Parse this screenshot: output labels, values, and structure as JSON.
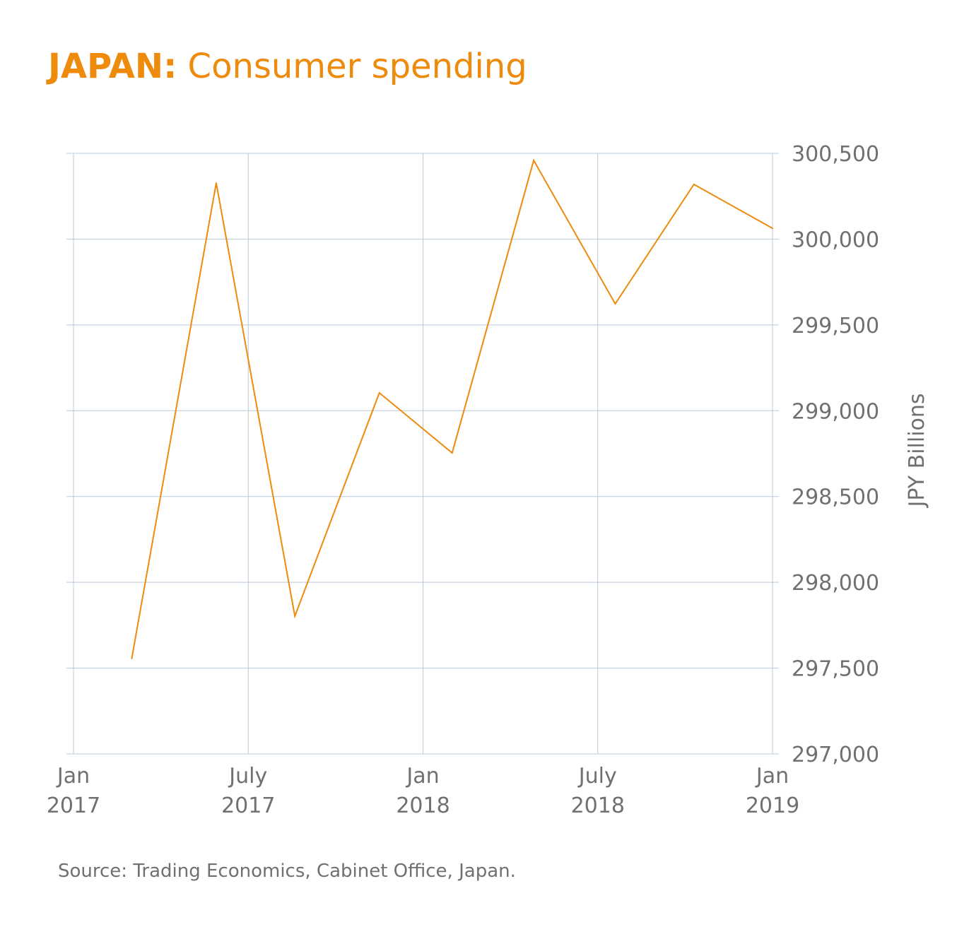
{
  "title": {
    "bold": "JAPAN:",
    "rest": " Consumer spending"
  },
  "source": "Source: Trading Economics, Cabinet Office, Japan.",
  "colors": {
    "line": "#ee8a0c",
    "grid": "#b9c9d9",
    "text": "#707070"
  },
  "chart_data": {
    "type": "line",
    "title": "JAPAN: Consumer spending",
    "xlabel": "",
    "ylabel": "JPY Billions",
    "x_unit": "months since Jan 2017",
    "xlim": [
      0,
      24
    ],
    "ylim": [
      297000,
      300500
    ],
    "yticks": [
      297000,
      297500,
      298000,
      298500,
      299000,
      299500,
      300000,
      300500
    ],
    "ytick_labels": [
      "297,000",
      "297,500",
      "298,000",
      "298,500",
      "299,000",
      "299,500",
      "300,000",
      "300,500"
    ],
    "xticks": [
      0,
      6,
      12,
      18,
      24
    ],
    "xtick_labels": [
      [
        "Jan",
        "2017"
      ],
      [
        "July",
        "2017"
      ],
      [
        "Jan",
        "2018"
      ],
      [
        "July",
        "2018"
      ],
      [
        "Jan",
        "2019"
      ]
    ],
    "grid": true,
    "y_axis_side": "right",
    "series": [
      {
        "name": "Consumer spending",
        "x": [
          2.0,
          4.9,
          7.6,
          10.5,
          13.0,
          15.8,
          18.6,
          21.3,
          24.0
        ],
        "values": [
          297556,
          300327,
          297803,
          299104,
          298754,
          300459,
          299623,
          300319,
          300063
        ]
      }
    ]
  }
}
